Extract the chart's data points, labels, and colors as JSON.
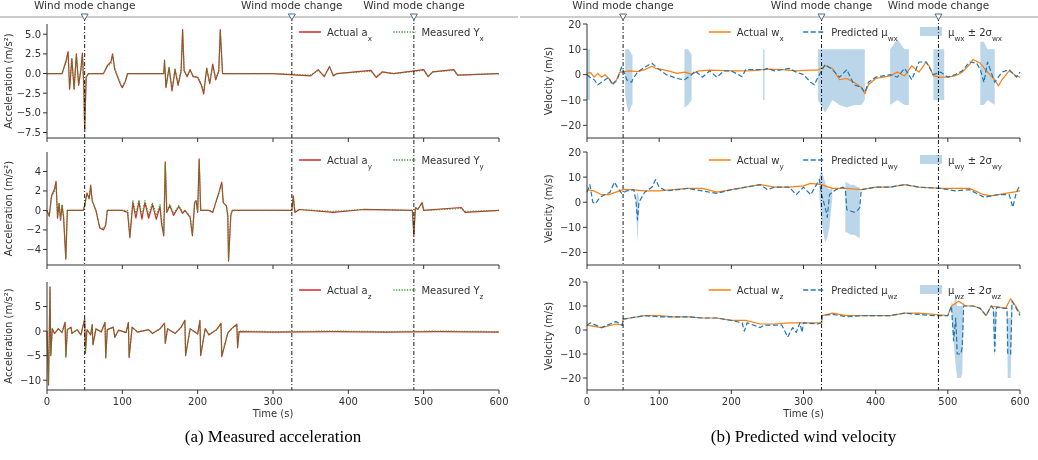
{
  "chart_data": [
    {
      "type": "line",
      "ylabel": "Acceleration (m/s²)",
      "xlim": [
        0,
        600
      ],
      "xticks": [
        0,
        100,
        200,
        300,
        400,
        500,
        600
      ],
      "ylim": [
        -8.2,
        6.3
      ],
      "yticks": [
        {
          "value": -7.5,
          "label": "−7.5"
        },
        {
          "value": -5,
          "label": "−5.0"
        },
        {
          "value": -2.5,
          "label": "−2.5"
        },
        {
          "value": 0,
          "label": "0.0"
        },
        {
          "value": 2.5,
          "label": "2.5"
        },
        {
          "value": 5,
          "label": "5.0"
        }
      ],
      "tick_labels": "y",
      "legend": "top right",
      "ref_lines": [
        {
          "axis": "x",
          "value": 50,
          "label": "Wind mode change"
        },
        {
          "axis": "x",
          "value": 325,
          "label": "Wind mode change"
        },
        {
          "axis": "x",
          "value": 487,
          "label": "Wind mode change"
        }
      ],
      "x": [
        0,
        20,
        25,
        28,
        30,
        33,
        36,
        39,
        42,
        45,
        47,
        49,
        50,
        52,
        55,
        75,
        80,
        85,
        87,
        90,
        94,
        98,
        100,
        104,
        107,
        155,
        156,
        158,
        162,
        166,
        170,
        174,
        178,
        180,
        182,
        186,
        190,
        194,
        200,
        205,
        208,
        212,
        216,
        220,
        224,
        228,
        230,
        233,
        300,
        350,
        360,
        368,
        375,
        380,
        385,
        430,
        437,
        445,
        460,
        500,
        506,
        512,
        540,
        545,
        600
      ],
      "series": [
        {
          "name": "Actual a$_{x}$",
          "color": "#d62728",
          "values": [
            0,
            0,
            1.5,
            2.8,
            -2.0,
            1.9,
            -2.0,
            2.5,
            -1.5,
            0.5,
            2.6,
            -2.0,
            -7.3,
            -0.5,
            0,
            0,
            1.0,
            1.5,
            2.5,
            0.5,
            -0.5,
            -1.5,
            -1.8,
            -1.0,
            0,
            0,
            1.7,
            -1.8,
            0.8,
            -2.2,
            0.5,
            -1.5,
            0.3,
            5.6,
            0.4,
            -0.4,
            0.5,
            -0.4,
            -0.5,
            -1.5,
            -2.6,
            0.7,
            -1.3,
            1.2,
            -0.8,
            0.3,
            5.6,
            0,
            0,
            -0.3,
            0.5,
            -0.4,
            0.9,
            -0.3,
            0,
            0.4,
            -0.5,
            0.2,
            0,
            0.5,
            -0.4,
            0.2,
            0.5,
            -0.2,
            0
          ]
        },
        {
          "name": "Measured Y$_{x}$",
          "color": "#2ca02c",
          "line_style": "dotted",
          "values": [
            0,
            0,
            1.4,
            2.5,
            -1.8,
            1.8,
            -1.9,
            2.3,
            -1.3,
            0.6,
            2.4,
            -1.8,
            -7.0,
            -0.4,
            0,
            0,
            0.9,
            1.3,
            2.3,
            0.6,
            -0.4,
            -1.4,
            -1.6,
            -1.0,
            0,
            0,
            1.5,
            -1.6,
            0.7,
            -2.0,
            0.6,
            -1.3,
            0.3,
            5.4,
            0.4,
            -0.3,
            0.4,
            -0.3,
            -0.4,
            -1.4,
            -2.2,
            0.6,
            -1.2,
            1.0,
            -0.7,
            0.3,
            5.4,
            0,
            0,
            -0.2,
            0.4,
            -0.3,
            0.8,
            -0.2,
            0,
            0.3,
            -0.4,
            0.2,
            0,
            0.4,
            -0.4,
            0.2,
            0.4,
            -0.2,
            0
          ]
        }
      ]
    },
    {
      "type": "line",
      "ylabel": "Velocity (m/s)",
      "xlim": [
        0,
        600
      ],
      "xticks": [
        0,
        100,
        200,
        300,
        400,
        500,
        600
      ],
      "ylim": [
        -25,
        20
      ],
      "yticks": [
        {
          "value": -20,
          "label": "−20"
        },
        {
          "value": -10,
          "label": "−10"
        },
        0,
        10,
        20
      ],
      "tick_labels": "y",
      "legend": "top right",
      "ref_lines": [
        {
          "axis": "x",
          "value": 50,
          "label": "Wind mode change"
        },
        {
          "axis": "x",
          "value": 325,
          "label": "Wind mode change"
        },
        {
          "axis": "x",
          "value": 487,
          "label": "Wind mode change"
        }
      ],
      "annotations": [
        "μ$_{wx}$ ± 2σ$_{wx}$"
      ],
      "series": [
        {
          "name": "Actual w$_{x}$",
          "color": "#ff7f0e",
          "x": [
            0,
            5,
            10,
            15,
            20,
            25,
            30,
            35,
            40,
            45,
            50,
            60,
            70,
            80,
            90,
            95,
            105,
            115,
            125,
            135,
            145,
            155,
            170,
            190,
            210,
            230,
            250,
            270,
            290,
            310,
            320,
            330,
            340,
            350,
            360,
            370,
            380,
            385,
            390,
            400,
            420,
            430,
            440,
            450,
            460,
            470,
            475,
            480,
            490,
            500,
            510,
            520,
            530,
            535,
            545,
            555,
            565,
            570,
            575,
            585,
            595,
            600
          ],
          "values": [
            0.5,
            0.8,
            -1.0,
            0.5,
            -1.0,
            0,
            -1.5,
            -3.5,
            -2.5,
            0.8,
            1.2,
            1.5,
            1.2,
            2.0,
            3.3,
            2.5,
            2.0,
            1.3,
            0.5,
            1.0,
            0.2,
            1.5,
            1.8,
            1.6,
            1.5,
            1.6,
            2.2,
            2.0,
            1.5,
            1.8,
            1.8,
            3.5,
            2.5,
            -2.0,
            -1.5,
            -3.0,
            -5.0,
            -7.5,
            -4,
            -1.5,
            -0.5,
            1.0,
            -0.5,
            3.5,
            1.0,
            5.0,
            3,
            -0.5,
            -1.0,
            -1.0,
            -0.5,
            1.0,
            4.0,
            6.0,
            4.5,
            1.0,
            -2.0,
            -4.5,
            -2,
            1.5,
            -0.5,
            -1.0
          ]
        },
        {
          "name": "Predicted μ$_{wx}$",
          "color": "#1f77b4",
          "line_style": "dashed",
          "x": [
            0,
            4,
            10,
            15,
            25,
            30,
            35,
            42,
            48,
            53,
            55,
            58,
            62,
            63,
            70,
            80,
            90,
            100,
            110,
            125,
            135,
            140,
            145,
            150,
            160,
            170,
            180,
            190,
            200,
            215,
            220,
            240,
            244,
            246,
            250,
            260,
            280,
            290,
            300,
            310,
            315,
            320,
            330,
            340,
            350,
            360,
            370,
            380,
            385,
            390,
            400,
            420,
            430,
            440,
            446,
            450,
            460,
            470,
            480,
            490,
            495,
            500,
            510,
            520,
            530,
            540,
            545,
            550,
            555,
            565,
            575,
            585,
            595,
            600
          ],
          "values": [
            0,
            -1,
            -2,
            -4,
            -2,
            -1,
            -4,
            -2,
            3,
            0,
            -2,
            -2.5,
            -3,
            -2,
            1,
            3,
            4.5,
            2,
            0,
            -1.5,
            -2,
            -1,
            0,
            1.5,
            -1,
            1.5,
            -1,
            1.5,
            1.5,
            -0.8,
            2,
            2,
            2,
            2,
            2.5,
            1.5,
            2.5,
            1,
            0,
            -3,
            -4,
            -1,
            4,
            2,
            -1,
            2,
            -4,
            -5,
            -7,
            -3,
            -1,
            0,
            -1,
            2.5,
            0,
            -2,
            5,
            5,
            0,
            1,
            0,
            -1,
            0,
            1.5,
            5,
            4.5,
            2,
            -3,
            5,
            -3,
            1,
            2,
            -1,
            1
          ],
          "lower": [
            -10,
            -10,
            null,
            null,
            null,
            null,
            null,
            null,
            null,
            -8,
            -12,
            -15,
            -12,
            -12,
            null,
            null,
            null,
            null,
            null,
            null,
            -13,
            -12,
            -10,
            null,
            null,
            null,
            null,
            null,
            null,
            null,
            null,
            null,
            -10,
            -10,
            null,
            null,
            null,
            null,
            null,
            null,
            null,
            -10,
            -15,
            -10,
            -12,
            -13,
            -12,
            -12,
            -10,
            null,
            null,
            -12,
            -10,
            -12,
            -12,
            null,
            null,
            null,
            -10,
            -10,
            -10,
            null,
            null,
            null,
            null,
            null,
            -12,
            -12,
            -10,
            -12,
            null,
            null,
            null,
            null
          ],
          "upper": [
            10,
            10,
            null,
            null,
            null,
            null,
            null,
            null,
            null,
            10,
            10,
            10,
            8,
            8,
            null,
            null,
            null,
            null,
            null,
            null,
            10,
            10,
            8,
            null,
            null,
            null,
            null,
            null,
            null,
            null,
            null,
            null,
            10,
            10,
            null,
            null,
            null,
            null,
            null,
            null,
            null,
            10,
            10,
            10,
            10,
            10,
            10,
            10,
            10,
            null,
            null,
            10,
            14,
            10,
            10,
            null,
            null,
            null,
            10,
            10,
            10,
            null,
            null,
            null,
            null,
            null,
            13,
            13,
            10,
            10,
            null,
            null,
            null,
            null
          ]
        }
      ]
    },
    {
      "type": "line",
      "ylabel": "Acceleration (m/s²)",
      "xlim": [
        0,
        600
      ],
      "xticks": [
        0,
        100,
        200,
        300,
        400,
        500,
        600
      ],
      "ylim": [
        -5.6,
        6
      ],
      "yticks": [
        {
          "value": -4,
          "label": "−4"
        },
        {
          "value": -2,
          "label": "−2"
        },
        0,
        2,
        4
      ],
      "tick_labels": "y",
      "legend": "top right",
      "ref_lines": [
        {
          "axis": "x",
          "value": 50
        },
        {
          "axis": "x",
          "value": 325
        },
        {
          "axis": "x",
          "value": 487
        }
      ],
      "x": [
        0,
        3,
        6,
        10,
        12,
        14,
        16,
        18,
        20,
        22,
        25,
        27,
        48,
        50,
        53,
        56,
        58,
        60,
        65,
        70,
        75,
        78,
        80,
        100,
        107,
        110,
        114,
        118,
        122,
        126,
        130,
        135,
        140,
        145,
        150,
        152,
        155,
        157,
        159,
        163,
        168,
        175,
        180,
        183,
        190,
        193,
        196,
        198,
        200,
        202,
        204,
        215,
        220,
        228,
        232,
        234,
        238,
        240,
        241,
        244,
        246,
        325,
        327,
        329,
        335,
        380,
        420,
        485,
        487,
        489,
        492,
        498,
        500,
        550,
        555,
        600
      ],
      "series": [
        {
          "name": "Actual a$_{y}$",
          "color": "#d62728",
          "values": [
            0,
            -0.6,
            1.5,
            2.2,
            3.0,
            -0.8,
            0.7,
            -1.0,
            0.5,
            -0.7,
            -5.0,
            0,
            0,
            0.5,
            1.8,
            1.2,
            2.6,
            1.0,
            0,
            -1.8,
            -2.0,
            -1.5,
            0,
            0,
            -0.2,
            -2.8,
            0.8,
            -0.8,
            0.9,
            -0.9,
            0.8,
            -0.8,
            0.6,
            -0.9,
            0.4,
            -1.3,
            -2.6,
            5.0,
            -0.2,
            0.5,
            -0.5,
            0.4,
            -0.3,
            0,
            -0.7,
            -2.6,
            0.8,
            1.0,
            -0.2,
            5.3,
            0,
            0,
            -0.2,
            1.8,
            2.9,
            0.8,
            0.5,
            -0.5,
            -5.2,
            -0.5,
            0,
            0,
            1.5,
            -0.2,
            0.1,
            -0.2,
            0.1,
            0,
            -2.6,
            0.3,
            0.1,
            0.8,
            0,
            0.3,
            -0.2,
            0
          ]
        },
        {
          "name": "Measured Y$_{y}$",
          "color": "#2ca02c",
          "line_style": "dotted",
          "values": [
            0,
            -0.5,
            1.4,
            2.0,
            2.8,
            -0.6,
            0.8,
            -0.8,
            0.6,
            -0.6,
            -4.8,
            0,
            0,
            0.5,
            1.7,
            1.2,
            2.4,
            1.0,
            0,
            -1.7,
            -1.9,
            -1.4,
            0,
            0,
            0,
            -2.5,
            1.0,
            -0.4,
            1.1,
            -0.5,
            1.0,
            -0.4,
            0.8,
            -0.5,
            0.6,
            -0.9,
            -2.4,
            4.8,
            -0.1,
            0.6,
            -0.3,
            0.5,
            -0.2,
            0,
            -0.6,
            -2.4,
            0.9,
            1.0,
            -0.1,
            5.1,
            0,
            0,
            -0.1,
            1.7,
            2.7,
            0.8,
            0.5,
            -0.4,
            -5.0,
            -0.4,
            0,
            0,
            1.4,
            -0.1,
            0.1,
            -0.1,
            0.1,
            0,
            -2.4,
            0.3,
            0.1,
            0.7,
            0,
            0.2,
            -0.1,
            0
          ]
        }
      ]
    },
    {
      "type": "line",
      "ylabel": "Velocity (m/s)",
      "xlim": [
        0,
        600
      ],
      "xticks": [
        0,
        100,
        200,
        300,
        400,
        500,
        600
      ],
      "ylim": [
        -25,
        20
      ],
      "yticks": [
        {
          "value": -20,
          "label": "−20"
        },
        {
          "value": -10,
          "label": "−10"
        },
        0,
        10,
        20
      ],
      "tick_labels": "y",
      "legend": "top right",
      "ref_lines": [
        {
          "axis": "x",
          "value": 50
        },
        {
          "axis": "x",
          "value": 325
        },
        {
          "axis": "x",
          "value": 487
        }
      ],
      "annotations": [
        "μ$_{wy}$ ± 2σ$_{wy}$"
      ],
      "series": [
        {
          "name": "Actual w$_{y}$",
          "color": "#ff7f0e",
          "x": [
            0,
            10,
            20,
            30,
            40,
            50,
            60,
            80,
            100,
            120,
            140,
            160,
            180,
            200,
            220,
            240,
            260,
            280,
            300,
            310,
            325,
            340,
            360,
            380,
            400,
            420,
            440,
            460,
            490,
            510,
            530,
            550,
            560,
            580,
            600
          ],
          "values": [
            5,
            4.5,
            3,
            3,
            4,
            5,
            5,
            4.5,
            4.5,
            5,
            5.5,
            5.5,
            4,
            5,
            6,
            7,
            6,
            6,
            6.5,
            7.5,
            7,
            5.5,
            5.5,
            5,
            6,
            6,
            7,
            6,
            5.5,
            5.5,
            5.5,
            3,
            2.5,
            3.5,
            4.5
          ]
        },
        {
          "name": "Predicted μ$_{wy}$",
          "color": "#1f77b4",
          "line_style": "dashed",
          "x": [
            0,
            4,
            8,
            12,
            18,
            25,
            32,
            38,
            42,
            48,
            55,
            65,
            68,
            70,
            72,
            80,
            90,
            95,
            100,
            110,
            140,
            180,
            200,
            220,
            240,
            250,
            260,
            280,
            290,
            300,
            310,
            316,
            322,
            325,
            330,
            333,
            336,
            340,
            345,
            355,
            358,
            360,
            365,
            370,
            376,
            378,
            380,
            400,
            420,
            440,
            460,
            490,
            510,
            530,
            550,
            570,
            585,
            590,
            595,
            600
          ],
          "values": [
            4,
            7,
            0,
            -0.5,
            2,
            3,
            4,
            8,
            6,
            3.5,
            4.5,
            5,
            0,
            -7,
            0,
            4,
            6,
            9,
            6,
            4.5,
            5.5,
            3.5,
            5,
            6,
            7,
            5,
            6,
            6,
            3,
            6,
            3,
            6,
            9,
            3,
            -2,
            -6,
            3,
            4,
            5,
            6,
            5,
            -3,
            -3.5,
            -4,
            -3,
            -2,
            5,
            6,
            6,
            7,
            6,
            5.5,
            4.5,
            5,
            2,
            3,
            3,
            -2,
            4,
            7
          ],
          "lower": [
            null,
            null,
            null,
            null,
            null,
            null,
            null,
            null,
            null,
            null,
            null,
            null,
            -2,
            -16,
            -2,
            null,
            null,
            null,
            null,
            null,
            null,
            null,
            null,
            null,
            null,
            null,
            null,
            null,
            null,
            null,
            null,
            null,
            2,
            -8,
            -16,
            -14,
            -10,
            2,
            null,
            null,
            -12,
            -12,
            -13,
            -13,
            -14,
            -14,
            null,
            null,
            null,
            null,
            null,
            null,
            null,
            null,
            null,
            null,
            null,
            null,
            null,
            null
          ],
          "upper": [
            null,
            null,
            null,
            null,
            null,
            null,
            null,
            null,
            null,
            null,
            null,
            null,
            2,
            4,
            2,
            null,
            null,
            null,
            null,
            null,
            null,
            null,
            null,
            null,
            null,
            null,
            null,
            null,
            null,
            null,
            null,
            null,
            10,
            13,
            8,
            6,
            5,
            6,
            null,
            null,
            8,
            8,
            7,
            7,
            6,
            6,
            null,
            null,
            null,
            null,
            null,
            null,
            null,
            null,
            null,
            null,
            null,
            null,
            null,
            null
          ]
        }
      ]
    },
    {
      "type": "line",
      "ylabel": "Acceleration (m/s²)",
      "xlabel": "Time (s)",
      "xlim": [
        0,
        600
      ],
      "xticks": [
        0,
        100,
        200,
        300,
        400,
        500,
        600
      ],
      "ylim": [
        -12,
        10
      ],
      "yticks": [
        {
          "value": -10,
          "label": "−10"
        },
        {
          "value": -5,
          "label": "−5"
        },
        0,
        5
      ],
      "legend": "top right",
      "ref_lines": [
        {
          "axis": "x",
          "value": 50
        },
        {
          "axis": "x",
          "value": 325
        },
        {
          "axis": "x",
          "value": 487
        }
      ],
      "annotations": [
        "(a) Measured acceleration"
      ],
      "x": [
        0,
        2,
        4,
        5,
        7,
        10,
        15,
        20,
        24,
        25,
        27,
        32,
        33,
        40,
        45,
        50,
        51,
        53,
        58,
        60,
        61,
        65,
        72,
        77,
        78,
        80,
        88,
        90,
        95,
        105,
        108,
        109,
        113,
        120,
        135,
        140,
        150,
        156,
        157,
        160,
        170,
        178,
        183,
        184,
        190,
        200,
        203,
        204,
        210,
        215,
        225,
        231,
        232,
        240,
        245,
        252,
        253,
        255,
        300,
        380,
        450,
        520,
        600
      ],
      "series": [
        {
          "name": "Actual a$_{z}$",
          "color": "#d62728",
          "values": [
            0,
            -11,
            9,
            -5,
            0.5,
            -0.5,
            0.5,
            -0.3,
            1.8,
            -5.3,
            0.3,
            0.8,
            -0.5,
            0.3,
            -0.8,
            2.5,
            -4.5,
            0.3,
            -0.8,
            1.3,
            -2.8,
            0.5,
            -0.2,
            1.8,
            -5.5,
            0.3,
            0.8,
            -1.3,
            0.2,
            -0.3,
            1.8,
            -5.4,
            0.8,
            -0.2,
            0.3,
            -0.5,
            0.5,
            1.6,
            -2.5,
            0.5,
            -0.5,
            0.8,
            2.2,
            -5,
            0.5,
            -0.6,
            2.2,
            -5,
            0.5,
            -0.8,
            0.3,
            1.6,
            -5.2,
            -0.4,
            0.5,
            1.4,
            -3.4,
            -0.1,
            -0.2,
            -0.1,
            -0.2,
            -0.1,
            -0.2
          ]
        },
        {
          "name": "Measured Y$_{z}$",
          "color": "#2ca02c",
          "line_style": "dotted",
          "values": [
            0,
            -10.5,
            8.8,
            -4.8,
            0.4,
            -0.4,
            0.4,
            -0.2,
            1.6,
            -5.1,
            0.2,
            0.7,
            -0.4,
            0.2,
            -0.6,
            2.3,
            -4.3,
            0.2,
            -0.6,
            1.2,
            -2.6,
            0.4,
            -0.1,
            1.6,
            -5.3,
            0.2,
            0.7,
            -1.1,
            0.1,
            -0.2,
            1.6,
            -5.2,
            0.7,
            -0.1,
            0.2,
            -0.4,
            0.4,
            1.4,
            -2.3,
            0.4,
            -0.4,
            0.7,
            2.0,
            -4.8,
            0.4,
            -0.5,
            2.0,
            -4.8,
            0.4,
            -0.6,
            0.2,
            1.4,
            -5.0,
            -0.3,
            0.4,
            1.2,
            -3.2,
            0,
            -0.1,
            0,
            -0.1,
            0,
            -0.1
          ]
        }
      ]
    },
    {
      "type": "line",
      "ylabel": "Velocity (m/s)",
      "xlabel": "Time (s)",
      "xlim": [
        0,
        600
      ],
      "xticks": [
        0,
        100,
        200,
        300,
        400,
        500,
        600
      ],
      "ylim": [
        -25,
        20
      ],
      "yticks": [
        {
          "value": -20,
          "label": "−20"
        },
        {
          "value": -10,
          "label": "−10"
        },
        0,
        10,
        20
      ],
      "legend": "top right",
      "ref_lines": [
        {
          "axis": "x",
          "value": 50
        },
        {
          "axis": "x",
          "value": 325
        },
        {
          "axis": "x",
          "value": 487
        }
      ],
      "annotations": [
        "μ$_{wz}$ ± 2σ$_{wz}$",
        "(b) Predicted wind velocity"
      ],
      "series": [
        {
          "name": "Actual w$_{z}$",
          "color": "#ff7f0e",
          "x": [
            0,
            20,
            40,
            49,
            50,
            60,
            80,
            100,
            120,
            140,
            160,
            180,
            200,
            220,
            240,
            260,
            280,
            300,
            320,
            325,
            326,
            340,
            360,
            380,
            400,
            420,
            440,
            460,
            480,
            500,
            505,
            515,
            525,
            535,
            545,
            553,
            560,
            570,
            580,
            587,
            595,
            600
          ],
          "values": [
            2,
            1,
            2.5,
            2,
            4.5,
            5,
            6,
            6,
            5.5,
            5.5,
            5,
            5,
            4,
            4,
            2.5,
            2.5,
            3,
            3,
            3,
            3,
            6,
            7,
            6,
            6,
            6,
            6,
            7,
            7,
            6.5,
            6,
            10,
            12,
            10,
            10,
            9,
            6,
            10,
            9.5,
            9,
            13,
            9.5,
            7
          ]
        },
        {
          "name": "Predicted μ$_{wz}$",
          "color": "#1f77b4",
          "line_style": "dashed",
          "x": [
            0,
            5,
            20,
            40,
            49,
            50,
            60,
            80,
            100,
            120,
            140,
            160,
            180,
            200,
            215,
            218,
            222,
            240,
            245,
            260,
            270,
            275,
            278,
            285,
            290,
            295,
            298,
            300,
            320,
            325,
            326,
            340,
            360,
            380,
            400,
            420,
            440,
            460,
            480,
            500,
            505,
            508,
            511,
            513,
            518,
            520,
            522,
            535,
            545,
            553,
            560,
            563,
            565,
            567,
            568,
            580,
            582,
            583,
            587,
            589,
            595,
            600
          ],
          "values": [
            2,
            3,
            1,
            3.5,
            2,
            4.5,
            5,
            6,
            5.5,
            5.5,
            5.5,
            5,
            5,
            4,
            3,
            -0.5,
            3,
            1,
            2,
            2,
            2,
            -1,
            -3,
            1,
            -1,
            3,
            -1,
            3,
            2.5,
            3,
            6,
            6.5,
            5.5,
            6,
            6,
            6,
            7,
            6.5,
            6,
            6,
            10,
            -4.5,
            5,
            -10,
            -10,
            -7,
            10,
            10,
            9,
            6,
            10,
            9,
            -9,
            8,
            9.5,
            9,
            9,
            -10,
            -10,
            12,
            9,
            6
          ],
          "lower": [
            null,
            null,
            null,
            null,
            null,
            null,
            null,
            null,
            null,
            null,
            null,
            null,
            null,
            null,
            null,
            null,
            null,
            null,
            null,
            null,
            null,
            null,
            null,
            null,
            null,
            null,
            null,
            null,
            null,
            null,
            null,
            null,
            null,
            null,
            null,
            null,
            null,
            null,
            null,
            null,
            8,
            -5,
            -15,
            -20,
            -20,
            -18,
            8,
            null,
            null,
            null,
            null,
            5,
            -12,
            6,
            null,
            null,
            5,
            -20,
            -20,
            5,
            null,
            null
          ],
          "upper": [
            null,
            null,
            null,
            null,
            null,
            null,
            null,
            null,
            null,
            null,
            null,
            null,
            null,
            null,
            null,
            null,
            null,
            null,
            null,
            null,
            null,
            null,
            null,
            null,
            null,
            null,
            null,
            null,
            null,
            null,
            null,
            null,
            null,
            null,
            null,
            null,
            null,
            null,
            null,
            null,
            12,
            10,
            15,
            10,
            10,
            10,
            12,
            null,
            null,
            null,
            null,
            10,
            7,
            10,
            null,
            null,
            10,
            5,
            5,
            13,
            null,
            null
          ]
        }
      ]
    }
  ]
}
